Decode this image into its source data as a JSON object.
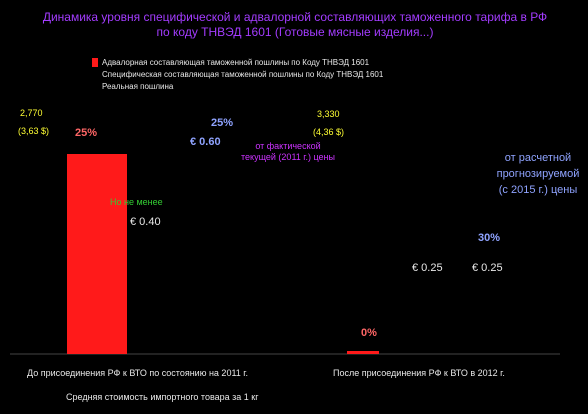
{
  "chart_data": {
    "type": "bar",
    "title": "Динамика уровня специфической и адвалорной составляющих таможенного тарифа в РФ по коду ТНВЭД 1601 (Готовые мясные изделия...)",
    "categories": [
      "До присоединения РФ к ВТО по состоянию на 2011 г.",
      "После присоединения РФ к ВТО в 2012 г."
    ],
    "series": [
      {
        "name": "Адвалорная составляющая таможенной пошлины по Коду ТНВЭД 1601",
        "values": [
          25,
          0
        ],
        "labels": [
          "25%",
          "0%"
        ],
        "color": "#ff1a1a"
      }
    ],
    "legend": [
      "Адвалорная составляющая таможенной пошлины по Коду ТНВЭД 1601",
      "Специфическая составляющая таможенной пошлины по Коду ТНВЭД 1601",
      "Реальная пошлина"
    ],
    "xlabel": "Средняя стоимость импортного товара за 1 кг",
    "ylim": [
      0,
      30
    ]
  },
  "annotations": {
    "left_price": "2,770",
    "left_price_eur": "(3,63 $)",
    "right_price": "3,330",
    "right_price_eur": "(4,36 $)",
    "spec_left_pct": "25%",
    "spec_left_val": "€ 0.60",
    "from_actual": "от фактической текущей (2011 г.) цены",
    "no_less": "Но не менее",
    "no_less_val": "€ 0.40",
    "forecast": "от расчетной прогнозируемой (с 2015 г.) цены",
    "spec_right_pct": "30%",
    "right_val_1": "€ 0.25",
    "right_val_2": "€ 0.25"
  }
}
